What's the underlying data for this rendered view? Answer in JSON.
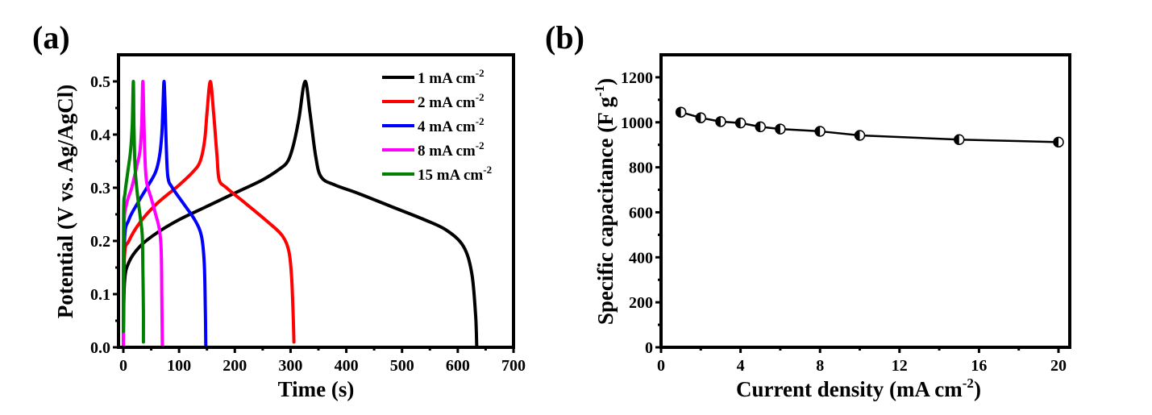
{
  "chart_data": [
    {
      "panel": "(a)",
      "type": "line",
      "title": "",
      "xlabel": "Time (s)",
      "ylabel": "Potential (V vs. Ag/AgCl)",
      "xlim": [
        -15,
        700
      ],
      "ylim": [
        0,
        0.55
      ],
      "xticks": [
        0,
        100,
        200,
        300,
        400,
        500,
        600,
        700
      ],
      "yticks": [
        0.0,
        0.1,
        0.2,
        0.3,
        0.4,
        0.5
      ],
      "xtick_labels": [
        "0",
        "100",
        "200",
        "300",
        "400",
        "500",
        "600",
        "700"
      ],
      "ytick_labels": [
        "0.0",
        "0.1",
        "0.2",
        "0.3",
        "0.4",
        "0.5"
      ],
      "grid": false,
      "legend_position": "top-right",
      "series": [
        {
          "name": "1 mA cm-2",
          "label_main": "1 mA cm",
          "label_sup": "-2",
          "color": "#000000",
          "points": [
            [
              0,
              0
            ],
            [
              2,
              0.12
            ],
            [
              10,
              0.16
            ],
            [
              30,
              0.19
            ],
            [
              60,
              0.215
            ],
            [
              100,
              0.24
            ],
            [
              150,
              0.265
            ],
            [
              200,
              0.29
            ],
            [
              250,
              0.315
            ],
            [
              280,
              0.335
            ],
            [
              295,
              0.35
            ],
            [
              305,
              0.38
            ],
            [
              315,
              0.43
            ],
            [
              326,
              0.5
            ],
            [
              335,
              0.44
            ],
            [
              345,
              0.36
            ],
            [
              355,
              0.32
            ],
            [
              380,
              0.305
            ],
            [
              420,
              0.29
            ],
            [
              480,
              0.265
            ],
            [
              540,
              0.24
            ],
            [
              580,
              0.22
            ],
            [
              610,
              0.19
            ],
            [
              625,
              0.14
            ],
            [
              632,
              0.06
            ],
            [
              634,
              0
            ]
          ]
        },
        {
          "name": "2 mA cm-2",
          "label_main": "2 mA cm",
          "label_sup": "-2",
          "color": "#ff0000",
          "points": [
            [
              0,
              0.02
            ],
            [
              2,
              0.17
            ],
            [
              10,
              0.2
            ],
            [
              30,
              0.235
            ],
            [
              60,
              0.27
            ],
            [
              100,
              0.305
            ],
            [
              125,
              0.33
            ],
            [
              138,
              0.35
            ],
            [
              146,
              0.39
            ],
            [
              150,
              0.44
            ],
            [
              156,
              0.5
            ],
            [
              162,
              0.44
            ],
            [
              168,
              0.36
            ],
            [
              172,
              0.315
            ],
            [
              185,
              0.3
            ],
            [
              220,
              0.27
            ],
            [
              260,
              0.235
            ],
            [
              285,
              0.21
            ],
            [
              297,
              0.18
            ],
            [
              302,
              0.13
            ],
            [
              305,
              0.05
            ],
            [
              306,
              0.01
            ]
          ]
        },
        {
          "name": "4 mA cm-2",
          "label_main": "4 mA cm",
          "label_sup": "-2",
          "color": "#0000ff",
          "points": [
            [
              0,
              0.02
            ],
            [
              2,
              0.2
            ],
            [
              10,
              0.24
            ],
            [
              25,
              0.27
            ],
            [
              45,
              0.305
            ],
            [
              58,
              0.33
            ],
            [
              65,
              0.36
            ],
            [
              69,
              0.4
            ],
            [
              71,
              0.45
            ],
            [
              73,
              0.5
            ],
            [
              75,
              0.45
            ],
            [
              77,
              0.38
            ],
            [
              80,
              0.32
            ],
            [
              88,
              0.3
            ],
            [
              108,
              0.27
            ],
            [
              128,
              0.24
            ],
            [
              140,
              0.21
            ],
            [
              145,
              0.16
            ],
            [
              147,
              0.08
            ],
            [
              148,
              0
            ]
          ]
        },
        {
          "name": "8 mA cm-2",
          "label_main": "8 mA cm",
          "label_sup": "-2",
          "color": "#ff00ff",
          "points": [
            [
              0,
              0
            ],
            [
              1,
              0.22
            ],
            [
              6,
              0.27
            ],
            [
              15,
              0.3
            ],
            [
              24,
              0.34
            ],
            [
              30,
              0.37
            ],
            [
              33,
              0.42
            ],
            [
              35,
              0.5
            ],
            [
              37,
              0.42
            ],
            [
              39,
              0.35
            ],
            [
              42,
              0.31
            ],
            [
              50,
              0.28
            ],
            [
              58,
              0.25
            ],
            [
              65,
              0.22
            ],
            [
              68,
              0.18
            ],
            [
              69,
              0.1
            ],
            [
              70,
              0
            ]
          ]
        },
        {
          "name": "15 mA cm-2",
          "label_main": "15 mA cm",
          "label_sup": "-2",
          "color": "#008000",
          "points": [
            [
              0,
              0.03
            ],
            [
              0.5,
              0.25
            ],
            [
              3,
              0.29
            ],
            [
              8,
              0.33
            ],
            [
              13,
              0.37
            ],
            [
              16,
              0.42
            ],
            [
              18,
              0.5
            ],
            [
              19,
              0.42
            ],
            [
              21,
              0.34
            ],
            [
              25,
              0.29
            ],
            [
              31,
              0.24
            ],
            [
              34,
              0.21
            ],
            [
              35,
              0.15
            ],
            [
              36,
              0.07
            ],
            [
              36,
              0.01
            ]
          ]
        }
      ]
    },
    {
      "panel": "(b)",
      "type": "scatter",
      "title": "",
      "xlabel_main": "Current density (mA cm",
      "xlabel_sup": "-2",
      "xlabel_tail": ")",
      "ylabel_main": "Specific capacitance (F g",
      "ylabel_sup": "-1",
      "ylabel_tail": ")",
      "xlim": [
        0,
        20.5
      ],
      "ylim": [
        0,
        1300
      ],
      "xticks": [
        0,
        4,
        8,
        12,
        16,
        20
      ],
      "yticks": [
        0,
        200,
        400,
        600,
        800,
        1000,
        1200
      ],
      "xtick_labels": [
        "0",
        "4",
        "8",
        "12",
        "16",
        "20"
      ],
      "ytick_labels": [
        "0",
        "200",
        "400",
        "600",
        "800",
        "1000",
        "1200"
      ],
      "grid": false,
      "marker": "half-filled circle",
      "connected": true,
      "x": [
        1,
        2,
        3,
        4,
        5,
        6,
        8,
        10,
        15,
        20
      ],
      "y": [
        1045,
        1020,
        1003,
        997,
        980,
        970,
        960,
        942,
        923,
        912
      ]
    }
  ],
  "panel_labels": [
    "(a)",
    "(b)"
  ]
}
